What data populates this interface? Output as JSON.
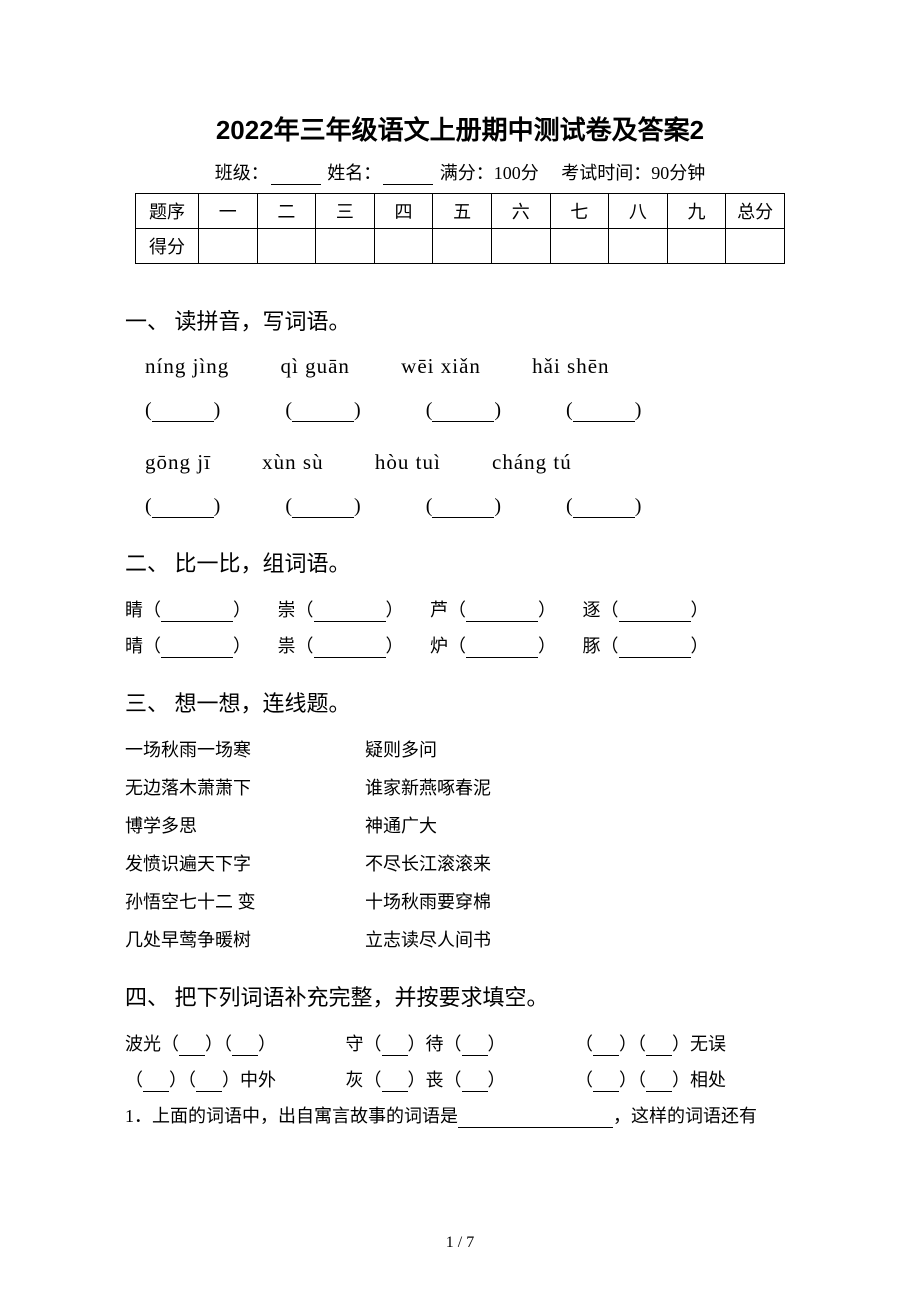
{
  "title": "2022年三年级语文上册期中测试卷及答案2",
  "subtitle": {
    "class_label": "班级：",
    "name_label": "姓名：",
    "fullscore": "满分：100分",
    "time": "考试时间：90分钟"
  },
  "score_table": {
    "row1_label": "题序",
    "row2_label": "得分",
    "cols": [
      "一",
      "二",
      "三",
      "四",
      "五",
      "六",
      "七",
      "八",
      "九",
      "总分"
    ]
  },
  "section1": {
    "heading": "一、 读拼音，写词语。",
    "pinyin_row1": [
      "níng jìng",
      "qì  guān",
      "wēi  xiǎn",
      "hǎi shēn"
    ],
    "pinyin_row2": [
      "gōng  jī",
      "xùn  sù",
      "hòu  tuì",
      "cháng  tú"
    ]
  },
  "section2": {
    "heading": "二、 比一比，组词语。",
    "row1": [
      "睛",
      "崇",
      "芦",
      "逐"
    ],
    "row2": [
      "晴",
      "祟",
      "炉",
      "豚"
    ]
  },
  "section3": {
    "heading": "三、 想一想，连线题。",
    "pairs": [
      {
        "left": "一场秋雨一场寒",
        "right": "疑则多问"
      },
      {
        "left": "无边落木萧萧下",
        "right": "谁家新燕啄春泥"
      },
      {
        "left": "博学多思",
        "right": "神通广大"
      },
      {
        "left": "发愤识遍天下字",
        "right": "不尽长江滚滚来"
      },
      {
        "left": "孙悟空七十二  变",
        "right": "十场秋雨要穿棉"
      },
      {
        "left": "几处早莺争暖树",
        "right": "立志读尽人间书"
      }
    ]
  },
  "section4": {
    "heading": "四、 把下列词语补充完整，并按要求填空。",
    "items_row1": [
      {
        "pre": "波光",
        "mid": "",
        "suf": ""
      },
      {
        "pre": "守",
        "mid": "待",
        "suf": ""
      },
      {
        "pre": "",
        "mid": "",
        "suf": "无误"
      }
    ],
    "items_row2": [
      {
        "pre": "",
        "mid": "",
        "suf": "中外"
      },
      {
        "pre": "灰",
        "mid": "丧",
        "suf": ""
      },
      {
        "pre": "",
        "mid": "",
        "suf": "相处"
      }
    ],
    "sub1_pre": "1．上面的词语中，出自寓言故事的词语是",
    "sub1_suf": "，这样的词语还有"
  },
  "page_num": "1 / 7"
}
